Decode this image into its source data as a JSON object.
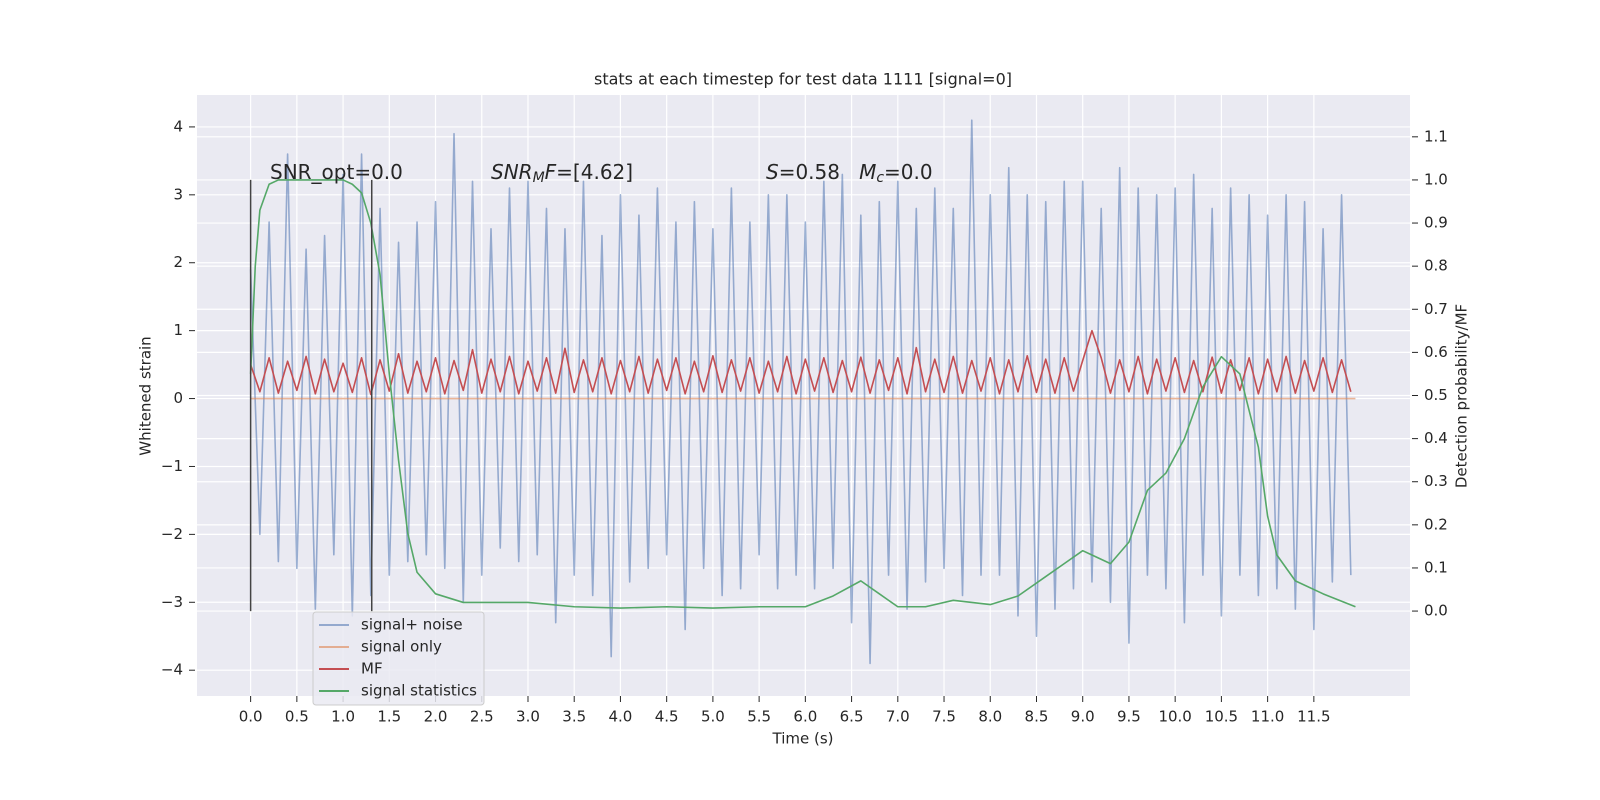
{
  "chart_data": {
    "type": "line",
    "title": "stats at each timestep for test data 1111 [signal=0]",
    "xlabel": "Time (s)",
    "ylabel": "Whitened strain",
    "y2label": "Detection probability/MF",
    "xlim": [
      -0.58,
      12.54
    ],
    "ylim": [
      -4.38,
      4.47
    ],
    "y2lim": [
      -0.197,
      1.197
    ],
    "grid": true,
    "legend": "lower left",
    "xticks": [
      {
        "value": 0,
        "label": "0.0"
      },
      {
        "value": 0.5,
        "label": "0.5"
      },
      {
        "value": 1,
        "label": "1.0"
      },
      {
        "value": 1.5,
        "label": "1.5"
      },
      {
        "value": 2,
        "label": "2.0"
      },
      {
        "value": 2.5,
        "label": "2.5"
      },
      {
        "value": 3,
        "label": "3.0"
      },
      {
        "value": 3.5,
        "label": "3.5"
      },
      {
        "value": 4,
        "label": "4.0"
      },
      {
        "value": 4.5,
        "label": "4.5"
      },
      {
        "value": 5,
        "label": "5.0"
      },
      {
        "value": 5.5,
        "label": "5.5"
      },
      {
        "value": 6,
        "label": "6.0"
      },
      {
        "value": 6.5,
        "label": "6.5"
      },
      {
        "value": 7,
        "label": "7.0"
      },
      {
        "value": 7.5,
        "label": "7.5"
      },
      {
        "value": 8,
        "label": "8.0"
      },
      {
        "value": 8.5,
        "label": "8.5"
      },
      {
        "value": 9,
        "label": "9.0"
      },
      {
        "value": 9.5,
        "label": "9.5"
      },
      {
        "value": 10,
        "label": "10.0"
      },
      {
        "value": 10.5,
        "label": "10.5"
      },
      {
        "value": 11,
        "label": "11.0"
      },
      {
        "value": 11.5,
        "label": "11.5"
      }
    ],
    "yticks": [
      {
        "value": -4,
        "label": "−4"
      },
      {
        "value": -3,
        "label": "−3"
      },
      {
        "value": -2,
        "label": "−2"
      },
      {
        "value": -1,
        "label": "−1"
      },
      0,
      1,
      2,
      3,
      4
    ],
    "y2ticks": [
      {
        "value": 0,
        "label": "0.0"
      },
      {
        "value": 0.1,
        "label": "0.1"
      },
      {
        "value": 0.2,
        "label": "0.2"
      },
      {
        "value": 0.3,
        "label": "0.3"
      },
      {
        "value": 0.4,
        "label": "0.4"
      },
      {
        "value": 0.5,
        "label": "0.5"
      },
      {
        "value": 0.6,
        "label": "0.6"
      },
      {
        "value": 0.7,
        "label": "0.7"
      },
      {
        "value": 0.8,
        "label": "0.8"
      },
      {
        "value": 0.9,
        "label": "0.9"
      },
      {
        "value": 1.0,
        "label": "1.0"
      },
      {
        "value": 1.1,
        "label": "1.1"
      }
    ],
    "x": [
      0,
      0.1,
      0.2,
      0.3,
      0.4,
      0.5,
      0.6,
      0.7,
      0.8,
      0.9,
      1,
      1.1,
      1.2,
      1.3,
      1.4,
      1.5,
      1.6,
      1.7,
      1.8,
      1.9,
      2,
      2.1,
      2.2,
      2.3,
      2.4,
      2.5,
      2.6,
      2.7,
      2.8,
      2.9,
      3,
      3.1,
      3.2,
      3.3,
      3.4,
      3.5,
      3.6,
      3.7,
      3.8,
      3.9,
      4,
      4.1,
      4.2,
      4.3,
      4.4,
      4.5,
      4.6,
      4.7,
      4.8,
      4.9,
      5,
      5.1,
      5.2,
      5.3,
      5.4,
      5.5,
      5.6,
      5.7,
      5.8,
      5.9,
      6,
      6.1,
      6.2,
      6.3,
      6.4,
      6.5,
      6.6,
      6.7,
      6.8,
      6.9,
      7,
      7.1,
      7.2,
      7.3,
      7.4,
      7.5,
      7.6,
      7.7,
      7.8,
      7.9,
      8,
      8.1,
      8.2,
      8.3,
      8.4,
      8.5,
      8.6,
      8.7,
      8.8,
      8.9,
      9,
      9.1,
      9.2,
      9.3,
      9.4,
      9.5,
      9.6,
      9.7,
      9.8,
      9.9,
      10,
      10.1,
      10.2,
      10.3,
      10.4,
      10.5,
      10.6,
      10.7,
      10.8,
      10.9,
      11,
      11.1,
      11.2,
      11.3,
      11.4,
      11.5,
      11.6,
      11.7,
      11.8,
      11.9
    ],
    "series": [
      {
        "name": "signal+ noise",
        "color": "#4c72b0",
        "alpha": 0.55,
        "axis": "y",
        "values": [
          1.9,
          -2.0,
          2.6,
          -2.4,
          3.6,
          -2.5,
          2.2,
          -3.1,
          2.4,
          -2.3,
          3.3,
          -3.2,
          3.6,
          -2.9,
          2.8,
          -2.6,
          2.3,
          -2.4,
          2.6,
          -2.3,
          2.9,
          -2.5,
          3.9,
          -3.0,
          3.2,
          -2.6,
          2.5,
          -2.2,
          3.1,
          -2.4,
          3.2,
          -2.3,
          2.8,
          -3.3,
          2.5,
          -2.6,
          3.2,
          -2.9,
          2.4,
          -3.8,
          3.0,
          -2.7,
          2.7,
          -2.5,
          3.1,
          -2.3,
          2.6,
          -3.4,
          2.9,
          -2.5,
          2.5,
          -2.9,
          3.1,
          -2.8,
          2.6,
          -2.3,
          3.0,
          -2.8,
          3.0,
          -2.6,
          2.6,
          -2.8,
          3.2,
          -2.5,
          3.3,
          -3.3,
          2.7,
          -3.9,
          2.9,
          -2.6,
          3.2,
          -3.1,
          2.8,
          -2.7,
          3.1,
          -2.5,
          2.8,
          -2.9,
          4.1,
          -2.6,
          3.0,
          -2.6,
          3.4,
          -3.2,
          3.0,
          -3.5,
          2.9,
          -3.1,
          3.2,
          -2.8,
          3.2,
          -2.7,
          2.8,
          -3.0,
          3.4,
          -3.6,
          3.1,
          -2.6,
          3.0,
          -2.8,
          3.1,
          -3.3,
          3.3,
          -2.6,
          2.8,
          -3.2,
          3.1,
          -2.6,
          3.0,
          -2.9,
          2.7,
          -2.8,
          3.0,
          -3.1,
          2.9,
          -3.4,
          2.5,
          -2.7,
          3.0,
          -2.6
        ]
      },
      {
        "name": "signal only",
        "color": "#dd8452",
        "alpha": 0.6,
        "axis": "y",
        "x": [
          0,
          11.95
        ],
        "values": [
          0,
          0
        ]
      },
      {
        "name": "MF",
        "color": "#c44e52",
        "alpha": 1,
        "axis": "y",
        "values": [
          0.5,
          0.1,
          0.6,
          0.08,
          0.55,
          0.12,
          0.62,
          0.07,
          0.58,
          0.1,
          0.52,
          0.09,
          0.6,
          0.06,
          0.57,
          0.11,
          0.66,
          0.08,
          0.55,
          0.1,
          0.6,
          0.07,
          0.56,
          0.12,
          0.72,
          0.08,
          0.58,
          0.1,
          0.62,
          0.07,
          0.55,
          0.11,
          0.6,
          0.08,
          0.74,
          0.09,
          0.57,
          0.1,
          0.6,
          0.07,
          0.56,
          0.1,
          0.62,
          0.08,
          0.58,
          0.12,
          0.6,
          0.07,
          0.55,
          0.1,
          0.63,
          0.09,
          0.57,
          0.11,
          0.6,
          0.08,
          0.55,
          0.1,
          0.62,
          0.07,
          0.58,
          0.11,
          0.6,
          0.09,
          0.56,
          0.1,
          0.61,
          0.08,
          0.57,
          0.12,
          0.6,
          0.07,
          0.75,
          0.1,
          0.58,
          0.09,
          0.62,
          0.08,
          0.56,
          0.11,
          0.6,
          0.07,
          0.57,
          0.1,
          0.63,
          0.09,
          0.58,
          0.08,
          0.6,
          0.11,
          0.56,
          1.0,
          0.6,
          0.08,
          0.57,
          0.1,
          0.62,
          0.07,
          0.58,
          0.11,
          0.6,
          0.09,
          0.56,
          0.1,
          0.61,
          0.08,
          0.57,
          0.12,
          0.6,
          0.07,
          0.58,
          0.1,
          0.62,
          0.08,
          0.56,
          0.11,
          0.6,
          0.09,
          0.57,
          0.1
        ]
      },
      {
        "name": "signal statistics",
        "color": "#55a868",
        "alpha": 1,
        "axis": "y2",
        "x": [
          0,
          0.05,
          0.1,
          0.2,
          0.3,
          0.5,
          0.8,
          1.0,
          1.1,
          1.2,
          1.3,
          1.4,
          1.5,
          1.6,
          1.7,
          1.8,
          2.0,
          2.3,
          2.5,
          3.0,
          3.5,
          4.0,
          4.5,
          5.0,
          5.5,
          6.0,
          6.3,
          6.6,
          6.8,
          7.0,
          7.3,
          7.6,
          8.0,
          8.3,
          8.6,
          8.8,
          9.0,
          9.1,
          9.3,
          9.5,
          9.7,
          9.9,
          10.1,
          10.3,
          10.5,
          10.7,
          10.9,
          11.0,
          11.1,
          11.3,
          11.6,
          11.95
        ],
        "values": [
          0.55,
          0.8,
          0.93,
          0.99,
          1.0,
          1.0,
          1.0,
          1.0,
          0.99,
          0.97,
          0.9,
          0.78,
          0.55,
          0.35,
          0.18,
          0.09,
          0.04,
          0.02,
          0.02,
          0.02,
          0.01,
          0.007,
          0.01,
          0.007,
          0.01,
          0.01,
          0.035,
          0.07,
          0.04,
          0.01,
          0.01,
          0.025,
          0.015,
          0.035,
          0.08,
          0.11,
          0.14,
          0.13,
          0.11,
          0.16,
          0.28,
          0.32,
          0.4,
          0.52,
          0.59,
          0.55,
          0.38,
          0.22,
          0.13,
          0.07,
          0.04,
          0.01
        ]
      }
    ],
    "vlines": [
      {
        "x": 0,
        "ymin": -3.13,
        "ymax": 3.22
      },
      {
        "x": 1.31,
        "ymin": -3.13,
        "ymax": 3.22
      }
    ],
    "annotations": [
      {
        "parts": [
          {
            "text": "SNR_opt=0.0"
          }
        ]
      },
      {
        "parts": [
          {
            "text": "SNR",
            "italic": true
          },
          {
            "text": "M",
            "italic": true,
            "sub": true
          },
          {
            "text": "F",
            "italic": true
          },
          {
            "text": "=[4.62]"
          }
        ]
      },
      {
        "parts": [
          {
            "text": "S",
            "italic": true
          },
          {
            "text": "=0.58   "
          },
          {
            "text": "M",
            "italic": true
          },
          {
            "text": "c",
            "italic": true,
            "sub": true
          },
          {
            "text": "=0.0"
          }
        ]
      }
    ]
  }
}
